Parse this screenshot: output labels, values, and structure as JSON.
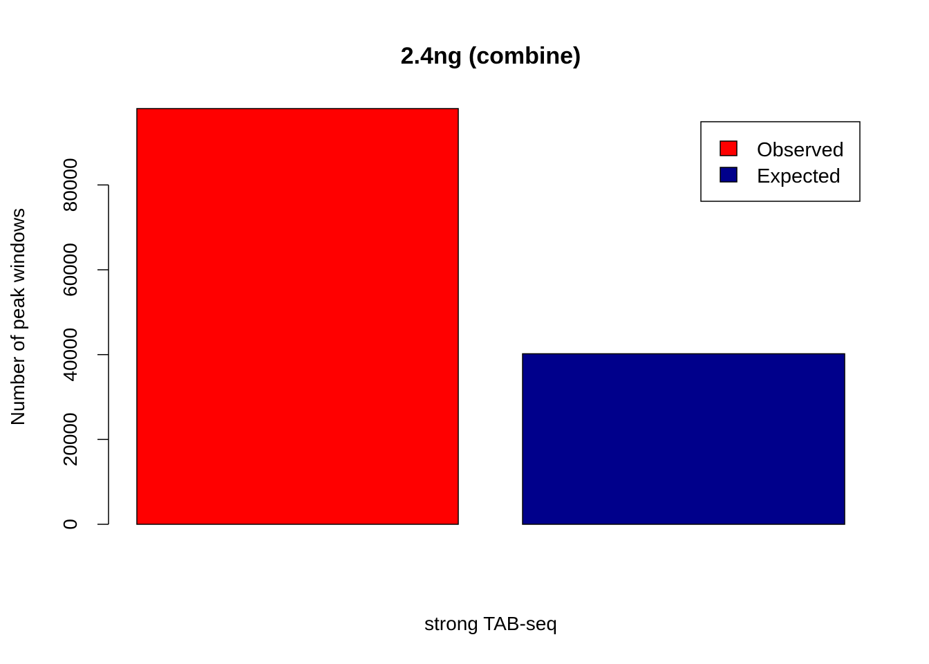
{
  "chart_data": {
    "type": "bar",
    "title": "2.4ng (combine)",
    "xlabel": "strong TAB-seq",
    "ylabel": "Number of peak windows",
    "categories": [
      "Observed",
      "Expected"
    ],
    "values": [
      98000,
      40200
    ],
    "colors": [
      "#ff0000",
      "#00008b"
    ],
    "ylim": [
      0,
      98000
    ],
    "yticks": [
      0,
      20000,
      40000,
      60000,
      80000
    ],
    "ytick_labels": [
      "0",
      "20000",
      "40000",
      "60000",
      "80000"
    ],
    "grid": false,
    "legend": {
      "position": "top-right",
      "entries": [
        {
          "label": "Observed",
          "color": "#ff0000"
        },
        {
          "label": "Expected",
          "color": "#00008b"
        }
      ]
    }
  }
}
